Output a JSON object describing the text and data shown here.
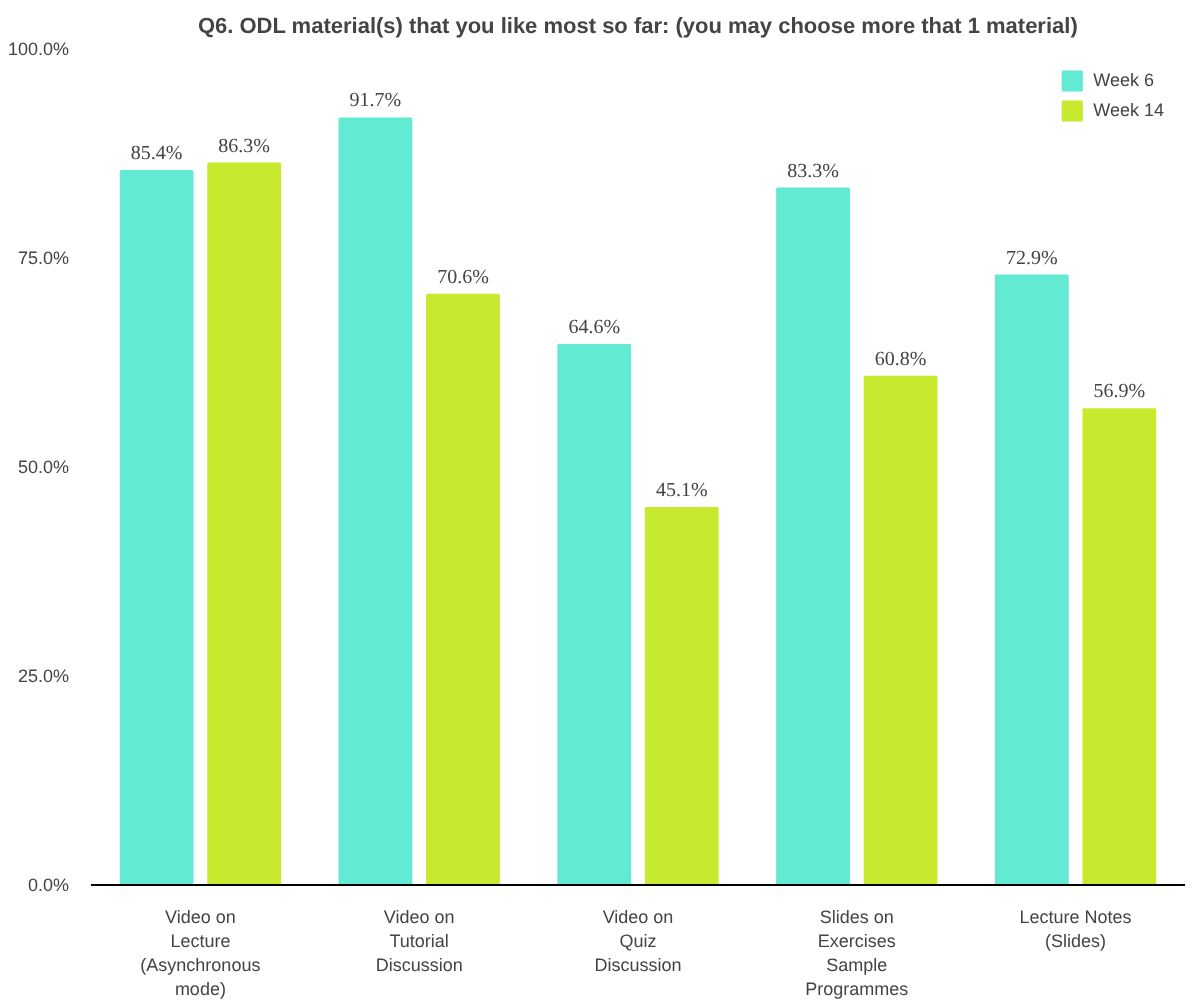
{
  "chart_data": {
    "type": "bar",
    "title": "Q6. ODL material(s) that you like most so far: (you may choose more that 1 material)",
    "categories": [
      "Video on\nLecture\n(Asynchronous\nmode)",
      "Video on\nTutorial\nDiscussion",
      "Video on\nQuiz\nDiscussion",
      "Slides on\nExercises\nSample\nProgrammes",
      "Lecture Notes\n(Slides)"
    ],
    "series": [
      {
        "name": "Week 6",
        "color": "#62ead2",
        "values": [
          85.4,
          91.7,
          64.6,
          83.3,
          72.9
        ],
        "value_labels": [
          "85.4%",
          "91.7%",
          "64.6%",
          "83.3%",
          "72.9%"
        ]
      },
      {
        "name": "Week 14",
        "color": "#c8ea2e",
        "values": [
          86.3,
          70.6,
          45.1,
          60.8,
          56.9
        ],
        "value_labels": [
          "86.3%",
          "70.6%",
          "45.1%",
          "60.8%",
          "56.9%"
        ]
      }
    ],
    "ylim": [
      0,
      100
    ],
    "yticks": [
      {
        "value": 0,
        "label": "0.0%"
      },
      {
        "value": 25,
        "label": "25.0%"
      },
      {
        "value": 50,
        "label": "50.0%"
      },
      {
        "value": 75,
        "label": "75.0%"
      },
      {
        "value": 100,
        "label": "100.0%"
      }
    ],
    "grid": false,
    "legend": "top right"
  }
}
